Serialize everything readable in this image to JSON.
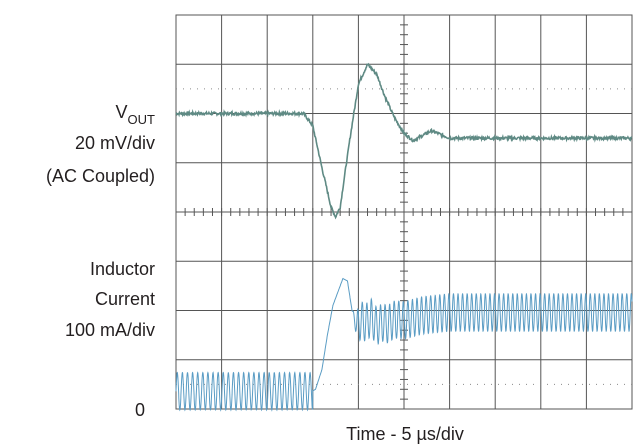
{
  "chart_data": {
    "type": "line",
    "title": "",
    "xlabel": "Time - 5 µs/div",
    "x_unit": "µs",
    "xlim": [
      0,
      50
    ],
    "grid": "on, 10 x 8 divisions",
    "channel_labels": {
      "vout": [
        "V",
        "OUT",
        "20 mV/div",
        "(AC Coupled)"
      ],
      "inductor": [
        "Inductor",
        "Current",
        "100 mA/div"
      ]
    },
    "y_tick_labels": [
      "0"
    ],
    "colors": {
      "vout": "#5f8a84",
      "inductor": "#5a9cc4",
      "grid": "#555555"
    },
    "series": [
      {
        "name": "VOUT",
        "unit": "mV",
        "x": [
          0,
          5,
          10,
          14,
          15,
          16,
          17,
          17.5,
          18,
          19,
          20,
          21,
          22,
          23,
          24,
          25,
          26,
          27,
          28,
          30,
          35,
          40,
          45,
          50
        ],
        "y": [
          0,
          0,
          0,
          0,
          -5,
          -22,
          -38,
          -42,
          -38,
          -12,
          12,
          20,
          16,
          6,
          -2,
          -8,
          -11,
          -9,
          -7,
          -10,
          -10,
          -10,
          -10,
          -10
        ]
      },
      {
        "name": "Inductor Current",
        "unit": "mA",
        "ripple_mA_pp": 76,
        "x": [
          0,
          5,
          10,
          14.9,
          15.3,
          16,
          16.6,
          17.2,
          17.8,
          18.3,
          18.8,
          19.3,
          19.8,
          20.3,
          20.8,
          21.4,
          22,
          22.6,
          23.2,
          24,
          25,
          27,
          30,
          40,
          50
        ],
        "y": [
          36,
          36,
          36,
          36,
          40,
          80,
          150,
          210,
          240,
          265,
          260,
          200,
          170,
          180,
          175,
          186,
          168,
          176,
          172,
          182,
          180,
          190,
          196,
          196,
          196
        ]
      }
    ]
  }
}
